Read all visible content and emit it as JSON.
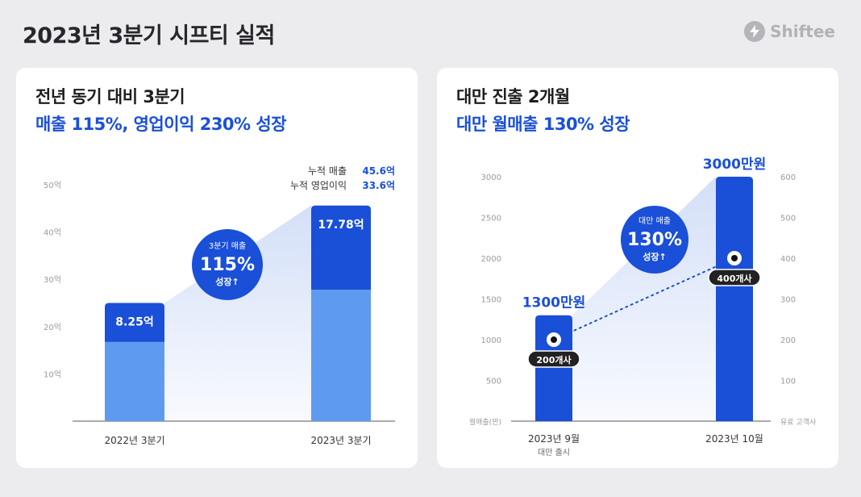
{
  "page": {
    "title": "2023년 3분기 시프티 실적",
    "brand": "Shiftee",
    "brand_icon": "lightning-bolt-icon"
  },
  "colors": {
    "dark_blue": "#1a4fd8",
    "light_blue": "#5e9bf0",
    "area_fill": "#cfdcf7",
    "axis": "#999999",
    "card_bg": "#ffffff",
    "page_bg": "#ececee"
  },
  "card1": {
    "line1": "전년 동기 대비 3분기",
    "line2": "매출 115%, 영업이익 230% 성장",
    "cumulative": [
      {
        "label": "누적 매출",
        "value": "45.6억"
      },
      {
        "label": "누적 영업이익",
        "value": "33.6억"
      }
    ],
    "badge": {
      "top": "3분기 매출",
      "main": "115%",
      "bottom": "성장↑"
    }
  },
  "card2": {
    "line1": "대만 진출 2개월",
    "line2": "대만 월매출 130% 성장",
    "badge": {
      "top": "대만 매출",
      "main": "130%",
      "bottom": "성장↑"
    }
  },
  "chart_data": [
    {
      "type": "bar",
      "categories": [
        "2022년 3분기",
        "2023년 3분기"
      ],
      "series": [
        {
          "name": "누적 매출",
          "values": [
            25.0,
            45.6
          ]
        },
        {
          "values": [
            8.25,
            17.78
          ]
        }
      ],
      "data_labels": [
        "8.25억",
        "17.78억"
      ],
      "ylim": [
        0,
        50
      ],
      "yticks": [
        10,
        20,
        30,
        40,
        50
      ],
      "ytick_labels": [
        "10억",
        "20억",
        "30억",
        "40억",
        "50억"
      ],
      "grid": false,
      "annotation": "3분기 매출 115% 성장↑"
    },
    {
      "type": "bar",
      "categories": [
        "2023년 9월",
        "2023년 10월"
      ],
      "category_sublabels": [
        "대만 출시",
        ""
      ],
      "series": [
        {
          "name": "월매출(만)",
          "values": [
            1300,
            3000
          ],
          "axis": "left"
        },
        {
          "name": "유료 고객사",
          "values": [
            200,
            400
          ],
          "axis": "right",
          "type": "line"
        }
      ],
      "bar_labels": [
        "1300만원",
        "3000만원"
      ],
      "point_labels": [
        "200개사",
        "400개사"
      ],
      "ylim": [
        0,
        3000
      ],
      "yticks": [
        500,
        1000,
        1500,
        2000,
        2500,
        3000
      ],
      "ylabel": "월매출(만)",
      "y2lim": [
        0,
        600
      ],
      "y2ticks": [
        100,
        200,
        300,
        400,
        500,
        600
      ],
      "y2label": "유료 고객사",
      "grid": false,
      "annotation": "대만 매출 130% 성장↑"
    }
  ]
}
